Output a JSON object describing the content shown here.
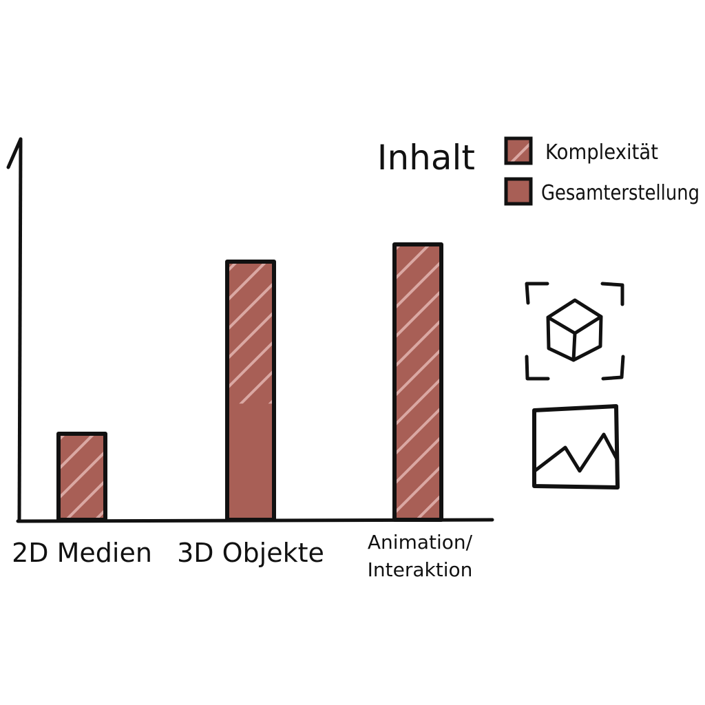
{
  "chart_data": {
    "type": "bar",
    "title": "Inhalt",
    "categories": [
      "2D Medien",
      "3D Objekte",
      "Animation/ Interaktion"
    ],
    "category_lines": [
      [
        "2D Medien"
      ],
      [
        "3D Objekte"
      ],
      [
        "Animation/",
        "Interaktion"
      ]
    ],
    "series": [
      {
        "name": "Gesamterstellung",
        "values": [
          25,
          75,
          80
        ]
      },
      {
        "name": "Komplexität",
        "values": [
          25,
          75,
          80
        ]
      }
    ],
    "hatched_fraction": [
      1.0,
      0.55,
      1.0
    ],
    "ylim": [
      0,
      100
    ],
    "grid": false,
    "legend_position": "top-right",
    "colors": {
      "bar": "#a85f56",
      "hatch": "#e3b5b0",
      "outline": "#111111"
    },
    "icons": [
      "cube-ar-icon",
      "image-graph-icon"
    ]
  },
  "legend": {
    "items": [
      {
        "label": "Komplexität",
        "hatched": true
      },
      {
        "label": "Gesamterstellung",
        "hatched": false
      }
    ]
  }
}
